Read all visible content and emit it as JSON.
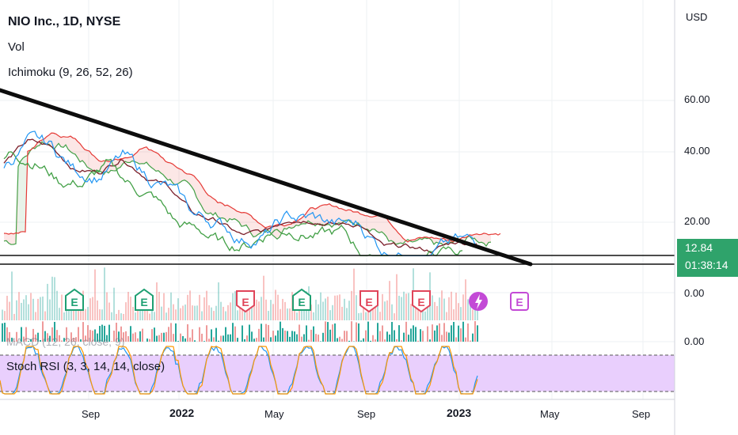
{
  "legend": {
    "title": "NIO Inc., 1D, NYSE",
    "vol": "Vol",
    "ichimoku": "Ichimoku (9, 26, 52, 26)",
    "macd": "MACD (12, 26, close, 9)",
    "stoch_rsi": "Stoch RSI (3, 3, 14, 14, close)"
  },
  "price_axis": {
    "currency": "USD",
    "ticks": [
      "60.00",
      "40.00",
      "20.00",
      "0.00",
      "0.00"
    ],
    "last_price": "12.84",
    "countdown": "01:38:14"
  },
  "time_axis": {
    "ticks": [
      "Sep",
      "2022",
      "May",
      "Sep",
      "2023",
      "May",
      "Sep"
    ]
  },
  "earnings_markers": [
    "E",
    "E",
    "E",
    "E",
    "E",
    "E",
    "E"
  ],
  "colors": {
    "trendline": "#0d0d0d",
    "price": "#2196f3",
    "lead_a": "#43a047",
    "lead_b": "#e53935",
    "base": "#7b1f2a",
    "lagging": "#43a047",
    "earnings_green": "#1e9f72",
    "earnings_red": "#e0455a",
    "earnings_purple": "#c34ad6",
    "stoch_bg": "#e9cffd",
    "last_price_bg": "#2fa36b"
  },
  "chart_data": {
    "type": "line",
    "title": "NIO Inc., 1D, NYSE",
    "ylabel": "USD",
    "ylim": [
      0,
      68
    ],
    "x": [
      "2021-06",
      "2021-07",
      "2021-08",
      "2021-09",
      "2021-10",
      "2021-11",
      "2021-12",
      "2022-01",
      "2022-02",
      "2022-03",
      "2022-04",
      "2022-05",
      "2022-06",
      "2022-07",
      "2022-08",
      "2022-09",
      "2022-10",
      "2022-11",
      "2022-12",
      "2023-01",
      "2023-02"
    ],
    "series": [
      {
        "values": [
          39,
          46,
          44,
          37,
          36,
          41,
          35,
          31,
          22,
          20,
          15,
          16,
          21,
          21,
          19,
          19,
          11,
          11,
          10,
          13,
          12.84
        ]
      }
    ],
    "support_level": 11,
    "resistance_level": 13
  }
}
